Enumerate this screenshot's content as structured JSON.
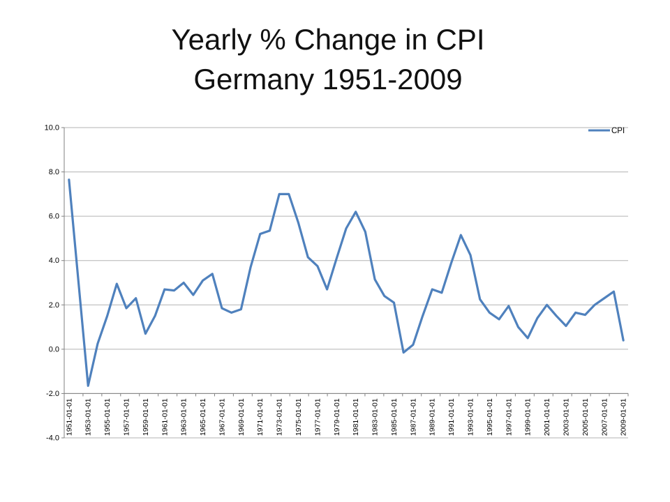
{
  "title": {
    "line1": "Yearly % Change in CPI",
    "line2": "Germany 1951-2009"
  },
  "legend": {
    "label": "CPI"
  },
  "chart_data": {
    "type": "line",
    "title": "Yearly % Change in CPI Germany 1951-2009",
    "xlabel": "",
    "ylabel": "",
    "ylim": [
      -4.0,
      10.0
    ],
    "grid": "horizontal",
    "legend_position": "top-right",
    "line_color": "#4F81BD",
    "grid_color": "#B3B3B3",
    "axis_color": "#808080",
    "x": [
      1951,
      1952,
      1953,
      1954,
      1955,
      1956,
      1957,
      1958,
      1959,
      1960,
      1961,
      1962,
      1963,
      1964,
      1965,
      1966,
      1967,
      1968,
      1969,
      1970,
      1971,
      1972,
      1973,
      1974,
      1975,
      1976,
      1977,
      1978,
      1979,
      1980,
      1981,
      1982,
      1983,
      1984,
      1985,
      1986,
      1987,
      1988,
      1989,
      1990,
      1991,
      1992,
      1993,
      1994,
      1995,
      1996,
      1997,
      1998,
      1999,
      2000,
      2001,
      2002,
      2003,
      2004,
      2005,
      2006,
      2007,
      2008,
      2009
    ],
    "series": [
      {
        "name": "CPI",
        "values": [
          7.65,
          3.0,
          -1.65,
          0.25,
          1.5,
          2.95,
          1.85,
          2.3,
          0.7,
          1.5,
          2.7,
          2.65,
          3.0,
          2.45,
          3.1,
          3.4,
          1.85,
          1.65,
          1.8,
          3.7,
          5.2,
          5.35,
          7.0,
          7.0,
          5.7,
          4.15,
          3.75,
          2.7,
          4.1,
          5.45,
          6.2,
          5.3,
          3.15,
          2.4,
          2.1,
          -0.15,
          0.2,
          1.5,
          2.7,
          2.55,
          3.9,
          5.15,
          4.25,
          2.25,
          1.65,
          1.35,
          1.95,
          1.0,
          0.5,
          1.4,
          2.0,
          1.5,
          1.05,
          1.65,
          1.55,
          2.0,
          2.3,
          2.6,
          0.4
        ]
      }
    ],
    "ytick_values": [
      10,
      8,
      6,
      4,
      2,
      0,
      -2,
      -4
    ],
    "ytick_labels": [
      "10.0",
      "8.0",
      "6.0",
      "4.0",
      "2.0",
      "0.0",
      "-2.0",
      "-4.0"
    ],
    "xtick_labels": [
      "1951-01-01",
      "1953-01-01",
      "1955-01-01",
      "1957-01-01",
      "1959-01-01",
      "1961-01-01",
      "1963-01-01",
      "1965-01-01",
      "1967-01-01",
      "1969-01-01",
      "1971-01-01",
      "1973-01-01",
      "1975-01-01",
      "1977-01-01",
      "1979-01-01",
      "1981-01-01",
      "1983-01-01",
      "1985-01-01",
      "1987-01-01",
      "1989-01-01",
      "1991-01-01",
      "1993-01-01",
      "1995-01-01",
      "1997-01-01",
      "1999-01-01",
      "2001-01-01",
      "2003-01-01",
      "2005-01-01",
      "2007-01-01",
      "2009-01-01"
    ]
  }
}
